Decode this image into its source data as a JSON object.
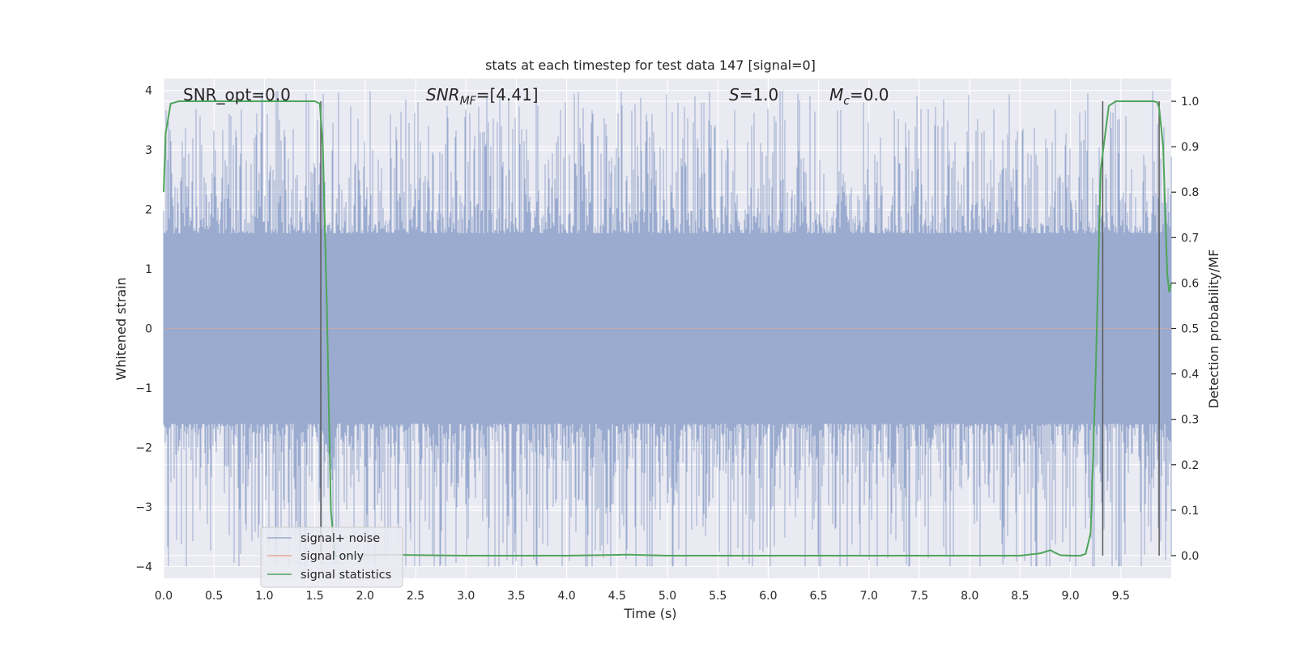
{
  "chart_data": {
    "type": "line",
    "title": "stats at each timestep for test data 147 [signal=0]",
    "xlabel": "Time (s)",
    "ylabel": "Whitened strain",
    "ylabel_right": "Detection probability/MF",
    "xlim": [
      0,
      10
    ],
    "ylim": [
      -4.2,
      4.2
    ],
    "ylim_right": [
      -0.05,
      1.05
    ],
    "x_ticks": [
      "0.0",
      "0.5",
      "1.0",
      "1.5",
      "2.0",
      "2.5",
      "3.0",
      "3.5",
      "4.0",
      "4.5",
      "5.0",
      "5.5",
      "6.0",
      "6.5",
      "7.0",
      "7.5",
      "8.0",
      "8.5",
      "9.0",
      "9.5"
    ],
    "y_ticks": [
      "−4",
      "−3",
      "−2",
      "−1",
      "0",
      "1",
      "2",
      "3",
      "4"
    ],
    "y_ticks_right": [
      "0.0",
      "0.1",
      "0.2",
      "0.3",
      "0.4",
      "0.5",
      "0.6",
      "0.7",
      "0.8",
      "0.9",
      "1.0"
    ],
    "grid": true,
    "legend_position": "lower-left",
    "annotations": {
      "snr_opt": "SNR_opt=0.0",
      "snr_mf_base": "SNR",
      "snr_mf_sub": "MF",
      "snr_mf_rest": "=[4.41]",
      "s_var": "S",
      "s_rest": "=1.0",
      "mc_var": "M",
      "mc_sub": "c",
      "mc_rest": "=0.0"
    },
    "series": [
      {
        "name": "signal+ noise",
        "color": "#9aabcf",
        "axis": "left",
        "description_values": "noise band, roughly ±1.6 dense, peaks to ±4",
        "envelope": {
          "dense_min": -1.6,
          "dense_max": 1.6,
          "peak_min": -4.0,
          "peak_max": 4.0
        }
      },
      {
        "name": "signal only",
        "color": "#e8a98f",
        "axis": "left",
        "x": [
          0,
          10
        ],
        "y": [
          0,
          0
        ]
      },
      {
        "name": "signal statistics",
        "color": "#4fa55a",
        "axis": "right",
        "x": [
          0.0,
          0.02,
          0.07,
          0.15,
          1.5,
          1.55,
          1.58,
          1.62,
          1.66,
          1.7,
          1.75,
          2.2,
          3.0,
          4.0,
          4.6,
          5.0,
          6.0,
          7.0,
          8.0,
          8.5,
          8.7,
          8.8,
          8.85,
          8.9,
          9.0,
          9.1,
          9.15,
          9.2,
          9.25,
          9.3,
          9.38,
          9.45,
          9.6,
          9.82,
          9.86,
          9.88,
          9.92,
          9.96,
          9.98,
          10.0
        ],
        "y": [
          0.8,
          0.93,
          0.995,
          1.0,
          1.0,
          0.995,
          0.9,
          0.55,
          0.1,
          0.0,
          0.0,
          0.002,
          0.0,
          0.0,
          0.002,
          0.0,
          0.0,
          0.0,
          0.0,
          0.0,
          0.005,
          0.012,
          0.006,
          0.001,
          0.0,
          0.0,
          0.004,
          0.05,
          0.4,
          0.85,
          0.99,
          1.0,
          1.0,
          1.0,
          0.998,
          0.985,
          0.9,
          0.62,
          0.58,
          0.6
        ]
      }
    ],
    "vertical_lines_x": [
      1.56,
      9.32,
      9.88
    ],
    "vertical_line_color": "#595959"
  }
}
